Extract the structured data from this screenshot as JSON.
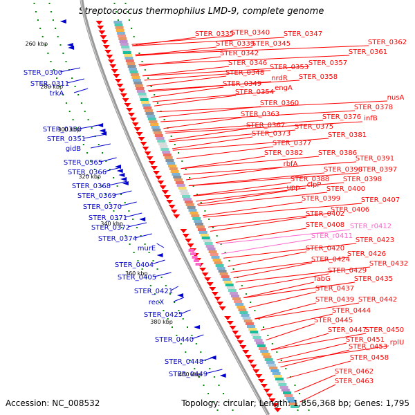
{
  "title": "Streptococcus thermophilus LMD-9, complete genome",
  "accession": "Accession: NC_008532",
  "summary": "Topology: circular; Length: 1,856,368 bp; Genes: 1,795",
  "colors": {
    "minus_strand": "#0000cc",
    "plus_strand": "#ff0000",
    "rna": "#ff66cc",
    "backbone": "#888888",
    "ticks": "#008800"
  },
  "ticks": [
    "260 kbp",
    "280 kbp",
    "300 kbp",
    "320 kbp",
    "340 kbp",
    "360 kbp",
    "380 kbp",
    "400 kbp"
  ],
  "left_labels": [
    "STER_0300",
    "STER_0311",
    "trkA",
    "STER_0350",
    "STER_0351",
    "gidB",
    "STER_0365",
    "STER_0366",
    "STER_0368",
    "STER_0369",
    "STER_0370",
    "STER_0371",
    "STER_0372",
    "STER_0374",
    "murE",
    "STER_0404",
    "STER_0405",
    "STER_0421",
    "recX",
    "STER_0425",
    "STER_0440",
    "STER_0448",
    "STER_0449"
  ],
  "right_labels": [
    "STER_0335",
    "STER_0340",
    "STER_0347",
    "STER_0339",
    "STER_0345",
    "STER_0362",
    "STER_0342",
    "STER_0361",
    "STER_0346",
    "STER_0357",
    "STER_0353",
    "STER_0348",
    "nrdR",
    "STER_0358",
    "STER_0349",
    "engA",
    "STER_0354",
    "STER_0360",
    "nusA",
    "STER_0363",
    "STER_0378",
    "STER_0376",
    "infB",
    "STER_0367",
    "STER_0375",
    "STER_0373",
    "STER_0381",
    "STER_0377",
    "STER_0382",
    "STER_0386",
    "rbfA",
    "STER_0391",
    "STER_0390",
    "STER_0397",
    "STER_0388",
    "clpP",
    "STER_0398",
    "upp",
    "STER_0400",
    "STER_0399",
    "STER_0407",
    "STER_0406",
    "STER_0402",
    "STER_0408",
    "STER_r0412",
    "STER_r0411",
    "STER_0423",
    "STER_0420",
    "STER_0426",
    "STER_0424",
    "STER_0432",
    "STER_0429",
    "fabG",
    "STER_0435",
    "STER_0437",
    "STER_0439",
    "STER_0442",
    "STER_0444",
    "STER_0445",
    "STER_0447",
    "STER_0450",
    "STER_0451",
    "rplU",
    "STER_0453",
    "STER_0458",
    "STER_0462",
    "STER_0463"
  ]
}
